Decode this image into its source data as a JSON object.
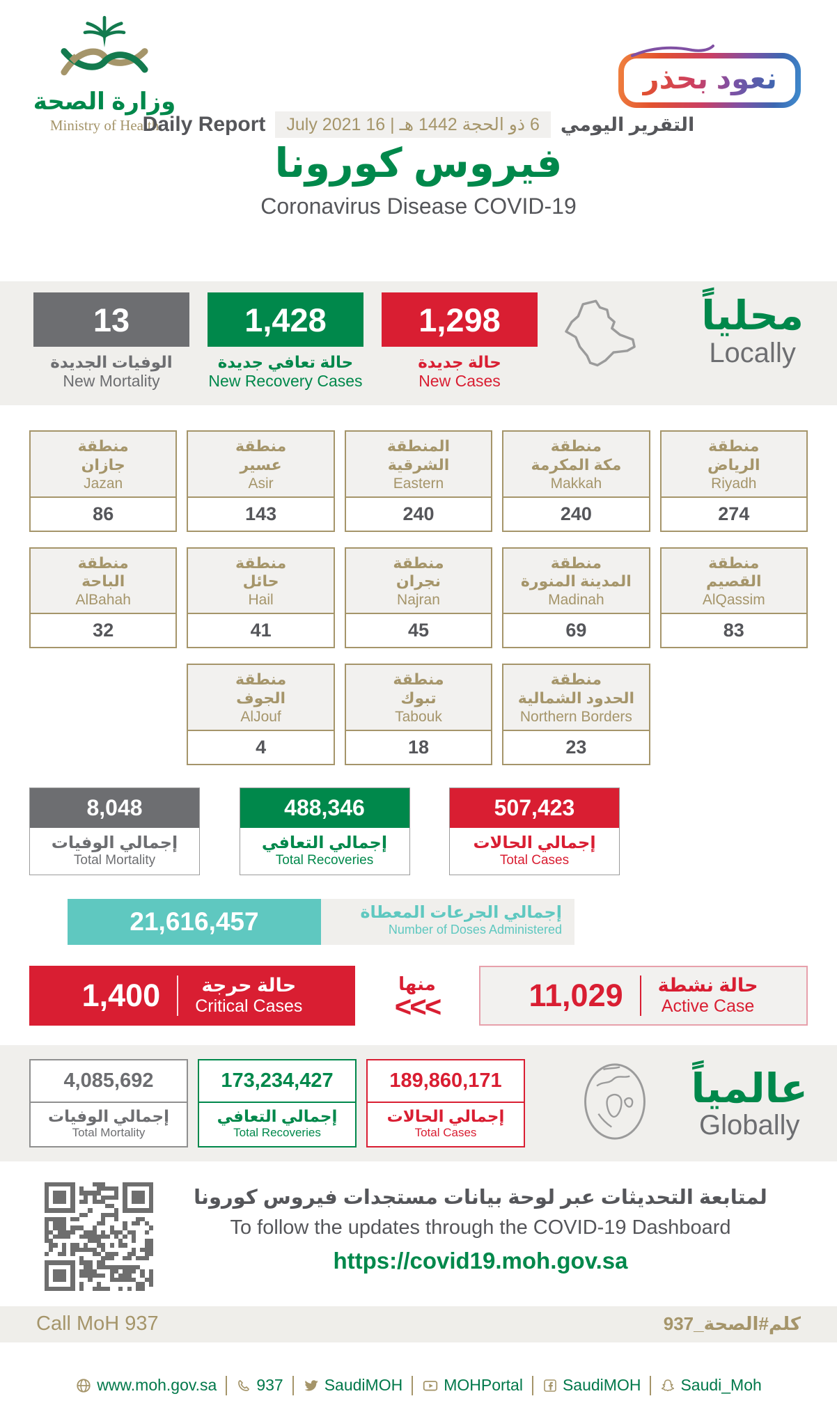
{
  "theme": {
    "green": "#00884b",
    "red": "#d91e32",
    "grey": "#6d6e71",
    "tan": "#a5956a",
    "teal": "#5fc8c0",
    "band": "#f0efec",
    "text-dark": "#55565a"
  },
  "header": {
    "ministry_ar": "وزارة الصحة",
    "ministry_en": "Ministry of Health",
    "badge_text": "نعود بحذر",
    "report_label_en": "Daily Report",
    "report_date": "6 ذو الحجة 1442 هـ | 16 July 2021",
    "report_label_ar": "التقرير اليومي",
    "title_ar": "فيروس كورونا",
    "title_en": "Coronavirus Disease COVID-19"
  },
  "locally": {
    "heading_ar": "محلياً",
    "heading_en": "Locally",
    "new_mortality": {
      "value": "13",
      "label_ar": "الوفيات الجديدة",
      "label_en": "New Mortality"
    },
    "new_recoveries": {
      "value": "1,428",
      "label_ar": "حالة تعافي جديدة",
      "label_en": "New Recovery Cases"
    },
    "new_cases": {
      "value": "1,298",
      "label_ar": "حالة جديدة",
      "label_en": "New Cases"
    }
  },
  "regions": {
    "row1": [
      {
        "ar1": "منطقة",
        "ar2": "جازان",
        "en": "Jazan",
        "value": "86"
      },
      {
        "ar1": "منطقة",
        "ar2": "عسير",
        "en": "Asir",
        "value": "143"
      },
      {
        "ar1": "المنطقة",
        "ar2": "الشرقية",
        "en": "Eastern",
        "value": "240"
      },
      {
        "ar1": "منطقة",
        "ar2": "مكة المكرمة",
        "en": "Makkah",
        "value": "240"
      },
      {
        "ar1": "منطقة",
        "ar2": "الرياض",
        "en": "Riyadh",
        "value": "274"
      }
    ],
    "row2": [
      {
        "ar1": "منطقة",
        "ar2": "الباحة",
        "en": "AlBahah",
        "value": "32"
      },
      {
        "ar1": "منطقة",
        "ar2": "حائل",
        "en": "Hail",
        "value": "41"
      },
      {
        "ar1": "منطقة",
        "ar2": "نجران",
        "en": "Najran",
        "value": "45"
      },
      {
        "ar1": "منطقة",
        "ar2": "المدينة المنورة",
        "en": "Madinah",
        "value": "69"
      },
      {
        "ar1": "منطقة",
        "ar2": "القصيم",
        "en": "AlQassim",
        "value": "83"
      }
    ],
    "row3": [
      {
        "ar1": "منطقة",
        "ar2": "الجوف",
        "en": "AlJouf",
        "value": "4"
      },
      {
        "ar1": "منطقة",
        "ar2": "تبوك",
        "en": "Tabouk",
        "value": "18"
      },
      {
        "ar1": "منطقة",
        "ar2": "الحدود الشمالية",
        "en": "Northern Borders",
        "value": "23"
      }
    ]
  },
  "totals": {
    "mortality": {
      "value": "8,048",
      "label_ar": "إجمالي الوفيات",
      "label_en": "Total Mortality"
    },
    "recoveries": {
      "value": "488,346",
      "label_ar": "إجمالي التعافي",
      "label_en": "Total Recoveries"
    },
    "cases": {
      "value": "507,423",
      "label_ar": "إجمالي الحالات",
      "label_en": "Total Cases"
    }
  },
  "doses": {
    "value": "21,616,457",
    "label_ar": "إجمالي الجرعات المعطاة",
    "label_en": "Number of Doses Administered"
  },
  "critical": {
    "value": "1,400",
    "label_ar": "حالة حرجة",
    "label_en": "Critical Cases"
  },
  "of_which": {
    "label_ar": "منها",
    "chevrons": "<<<"
  },
  "active": {
    "value": "11,029",
    "label_ar": "حالة نشطة",
    "label_en": "Active Case"
  },
  "globally": {
    "heading_ar": "عالمياً",
    "heading_en": "Globally",
    "mortality": {
      "value": "4,085,692",
      "label_ar": "إجمالي الوفيات",
      "label_en": "Total Mortality"
    },
    "recoveries": {
      "value": "173,234,427",
      "label_ar": "إجمالي التعافي",
      "label_en": "Total Recoveries"
    },
    "cases": {
      "value": "189,860,171",
      "label_ar": "إجمالي الحالات",
      "label_en": "Total Cases"
    }
  },
  "dashboard": {
    "line_ar": "لمتابعة التحديثات عبر لوحة بيانات مستجدات فيروس كورونا",
    "line_en": "To follow the updates through the COVID-19 Dashboard",
    "url": "https://covid19.moh.gov.sa"
  },
  "call_band": {
    "en": "Call MoH 937",
    "ar": "كلم#الصحة_937"
  },
  "footer_links": [
    {
      "icon": "globe-icon",
      "text": "www.moh.gov.sa"
    },
    {
      "icon": "phone-icon",
      "text": "937"
    },
    {
      "icon": "twitter-icon",
      "text": "SaudiMOH"
    },
    {
      "icon": "youtube-icon",
      "text": "MOHPortal"
    },
    {
      "icon": "facebook-icon",
      "text": "SaudiMOH"
    },
    {
      "icon": "snapchat-icon",
      "text": "Saudi_Moh"
    }
  ]
}
